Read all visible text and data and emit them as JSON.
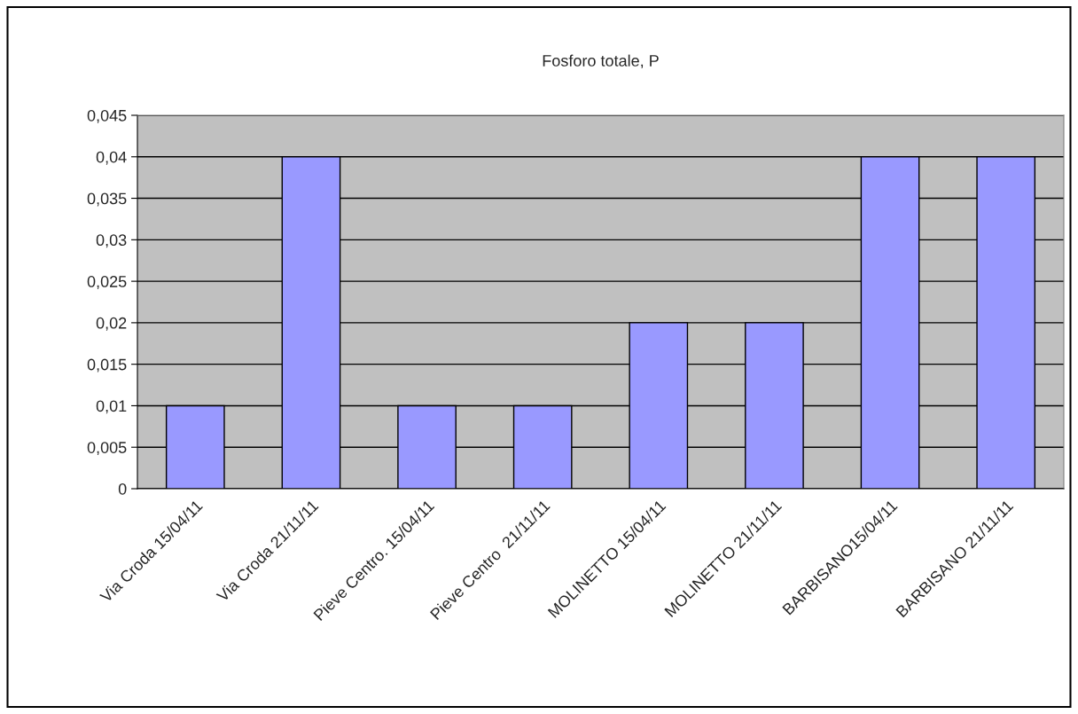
{
  "chart_data": {
    "type": "bar",
    "title": "Fosforo totale, P",
    "categories": [
      "Via Croda 15/04/11",
      "Via Croda 21/11/11",
      "Pieve Centro. 15/04/11",
      "Pieve Centro  21/11/11",
      "MOLINETTO 15/04/11",
      "MOLINETTO 21/11/11",
      "BARBISANO15/04/11",
      "BARBISANO 21/11/11"
    ],
    "values": [
      0.01,
      0.04,
      0.01,
      0.01,
      0.02,
      0.02,
      0.04,
      0.04
    ],
    "color": "#9999ff",
    "ylim": [
      0,
      0.045
    ],
    "yticks": [
      0,
      {
        "value": 0.005,
        "label": "0,005"
      },
      {
        "value": 0.01,
        "label": "0,01"
      },
      {
        "value": 0.015,
        "label": "0,015"
      },
      {
        "value": 0.02,
        "label": "0,02"
      },
      {
        "value": 0.025,
        "label": "0,025"
      },
      {
        "value": 0.03,
        "label": "0,03"
      },
      {
        "value": 0.035,
        "label": "0,035"
      },
      {
        "value": 0.04,
        "label": "0,04"
      },
      {
        "value": 0.045,
        "label": "0,045"
      }
    ],
    "grid": "y",
    "legend": false
  }
}
